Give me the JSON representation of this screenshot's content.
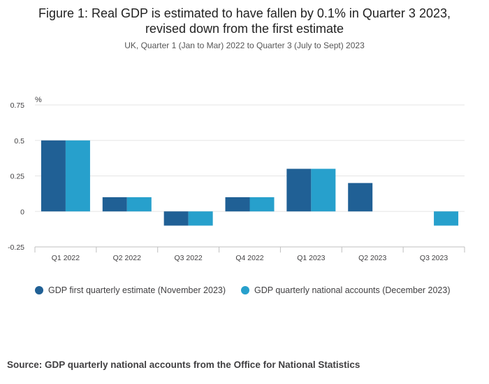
{
  "title_line1": "Figure 1: Real GDP is estimated to have fallen by 0.1% in Quarter 3 2023,",
  "title_line2": "revised down from the first estimate",
  "subtitle": "UK, Quarter 1 (Jan to Mar) 2022 to Quarter 3 (July to Sept) 2023",
  "source": "Source: GDP quarterly national accounts from the Office for National Statistics",
  "colors": {
    "series1": "#206095",
    "series2": "#27A0CC",
    "grid": "#e5e5e5",
    "axis": "#bfbfbf"
  },
  "chart_data": {
    "type": "bar",
    "ylabel": "%",
    "ylim": [
      -0.25,
      0.75
    ],
    "yticks": [
      0.75,
      0.5,
      0.25,
      0,
      -0.25
    ],
    "ytick_labels": [
      "0.75",
      "0.5",
      "0.25",
      "0",
      "-0.25"
    ],
    "categories": [
      "Q1 2022",
      "Q2 2022",
      "Q3 2022",
      "Q4 2022",
      "Q1 2023",
      "Q2 2023",
      "Q3 2023"
    ],
    "series": [
      {
        "name": "GDP first quarterly estimate (November 2023)",
        "values": [
          0.5,
          0.1,
          -0.1,
          0.1,
          0.3,
          0.2,
          null
        ]
      },
      {
        "name": "GDP quarterly national accounts (December 2023)",
        "values": [
          0.5,
          0.1,
          -0.1,
          0.1,
          0.3,
          0.0,
          -0.1
        ]
      }
    ],
    "grid": true,
    "legend_position": "bottom"
  }
}
